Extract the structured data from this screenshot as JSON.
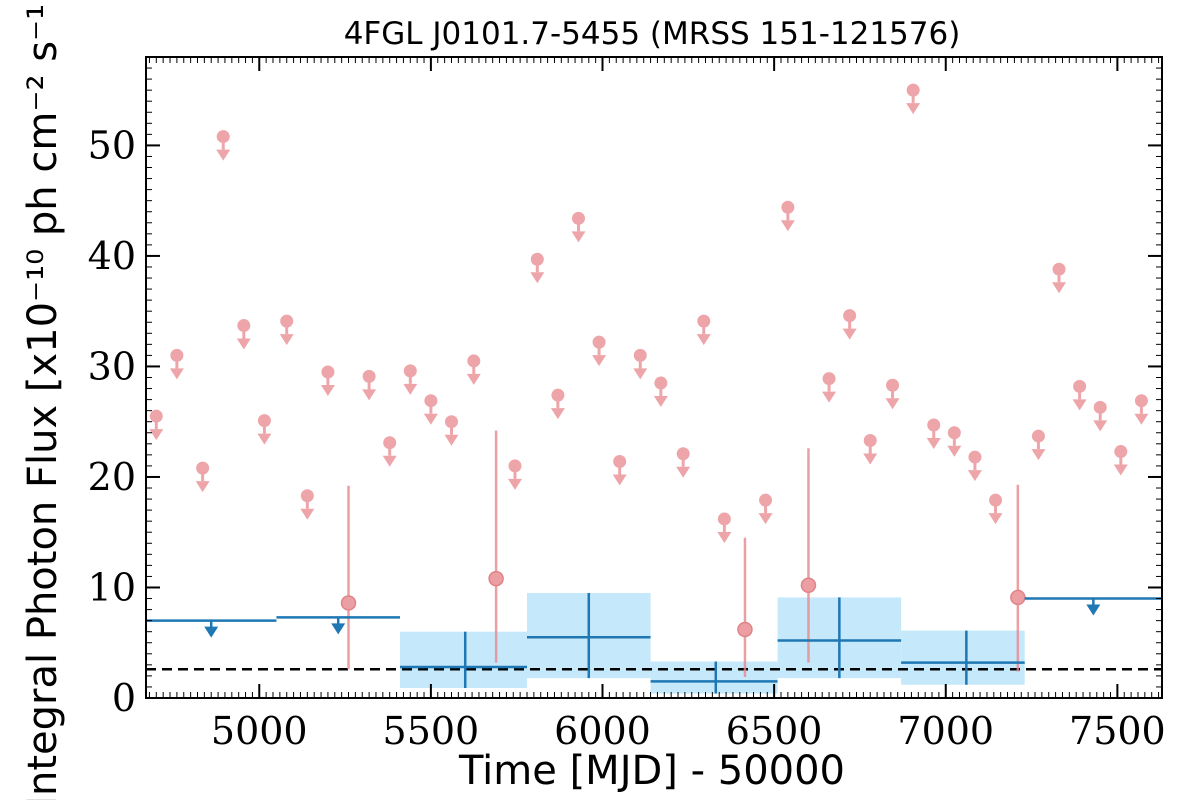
{
  "chart_data": {
    "type": "scatter",
    "title": "4FGL J0101.7-5455 (MRSS 151-121576)",
    "xlabel": "Time [MJD] - 50000",
    "ylabel": "Integral Photon Flux [x10⁻¹⁰ ph cm⁻² s⁻¹]",
    "xlim": [
      4670,
      7630
    ],
    "ylim": [
      0,
      58
    ],
    "xticks": [
      5000,
      5500,
      6000,
      6500,
      7000,
      7500
    ],
    "yticks": [
      0,
      10,
      20,
      30,
      40,
      50
    ],
    "grid": false,
    "legend": "none",
    "colors": {
      "short_bins": "#e8888d",
      "long_bins": "#1f77b4",
      "long_bins_fill": "#c5e9fb",
      "mean_line": "#000000"
    },
    "mean_flux": 2.6,
    "short_bin_upper_limits": [
      {
        "x": 4700,
        "y": 25.5
      },
      {
        "x": 4760,
        "y": 31.0
      },
      {
        "x": 4835,
        "y": 20.8
      },
      {
        "x": 4895,
        "y": 50.8
      },
      {
        "x": 4955,
        "y": 33.7
      },
      {
        "x": 5015,
        "y": 25.1
      },
      {
        "x": 5080,
        "y": 34.1
      },
      {
        "x": 5140,
        "y": 18.3
      },
      {
        "x": 5200,
        "y": 29.5
      },
      {
        "x": 5320,
        "y": 29.1
      },
      {
        "x": 5380,
        "y": 23.1
      },
      {
        "x": 5440,
        "y": 29.6
      },
      {
        "x": 5500,
        "y": 26.9
      },
      {
        "x": 5560,
        "y": 25.0
      },
      {
        "x": 5625,
        "y": 30.5
      },
      {
        "x": 5745,
        "y": 21.0
      },
      {
        "x": 5810,
        "y": 39.7
      },
      {
        "x": 5870,
        "y": 27.4
      },
      {
        "x": 5930,
        "y": 43.4
      },
      {
        "x": 5990,
        "y": 32.2
      },
      {
        "x": 6050,
        "y": 21.4
      },
      {
        "x": 6110,
        "y": 31.0
      },
      {
        "x": 6170,
        "y": 28.5
      },
      {
        "x": 6235,
        "y": 22.1
      },
      {
        "x": 6295,
        "y": 34.1
      },
      {
        "x": 6355,
        "y": 16.2
      },
      {
        "x": 6475,
        "y": 17.9
      },
      {
        "x": 6540,
        "y": 44.4
      },
      {
        "x": 6660,
        "y": 28.9
      },
      {
        "x": 6720,
        "y": 34.6
      },
      {
        "x": 6780,
        "y": 23.3
      },
      {
        "x": 6845,
        "y": 28.3
      },
      {
        "x": 6905,
        "y": 55.0
      },
      {
        "x": 6965,
        "y": 24.7
      },
      {
        "x": 7025,
        "y": 24.0
      },
      {
        "x": 7085,
        "y": 21.8
      },
      {
        "x": 7145,
        "y": 17.9
      },
      {
        "x": 7270,
        "y": 23.7
      },
      {
        "x": 7330,
        "y": 38.8
      },
      {
        "x": 7390,
        "y": 28.2
      },
      {
        "x": 7450,
        "y": 26.3
      },
      {
        "x": 7510,
        "y": 22.3
      },
      {
        "x": 7570,
        "y": 26.9
      }
    ],
    "short_bin_detections": [
      {
        "x": 5260,
        "y": 8.6,
        "y_low": 2.6,
        "y_high": 19.2
      },
      {
        "x": 5690,
        "y": 10.8,
        "y_low": 3.2,
        "y_high": 24.2
      },
      {
        "x": 6415,
        "y": 6.2,
        "y_low": 1.9,
        "y_high": 14.5
      },
      {
        "x": 6600,
        "y": 10.2,
        "y_low": 3.2,
        "y_high": 22.6
      },
      {
        "x": 7210,
        "y": 9.1,
        "y_low": 2.4,
        "y_high": 19.3
      }
    ],
    "long_bin_upper_limits": [
      {
        "x_start": 4670,
        "x_end": 5050,
        "y": 7.0
      },
      {
        "x_start": 5050,
        "x_end": 5410,
        "y": 7.3
      },
      {
        "x_start": 7230,
        "x_end": 7630,
        "y": 9.0
      }
    ],
    "long_bin_detections": [
      {
        "x_start": 5410,
        "x_end": 5780,
        "x_center": 5600,
        "y": 2.8,
        "y_low": 0.9,
        "y_high": 6.0
      },
      {
        "x_start": 5780,
        "x_end": 6140,
        "x_center": 5960,
        "y": 5.5,
        "y_low": 1.8,
        "y_high": 9.5
      },
      {
        "x_start": 6140,
        "x_end": 6510,
        "x_center": 6330,
        "y": 1.5,
        "y_low": 0.4,
        "y_high": 3.3
      },
      {
        "x_start": 6510,
        "x_end": 6870,
        "x_center": 6690,
        "y": 5.2,
        "y_low": 1.8,
        "y_high": 9.1
      },
      {
        "x_start": 6870,
        "x_end": 7230,
        "x_center": 7060,
        "y": 3.2,
        "y_low": 1.2,
        "y_high": 6.1
      }
    ]
  }
}
